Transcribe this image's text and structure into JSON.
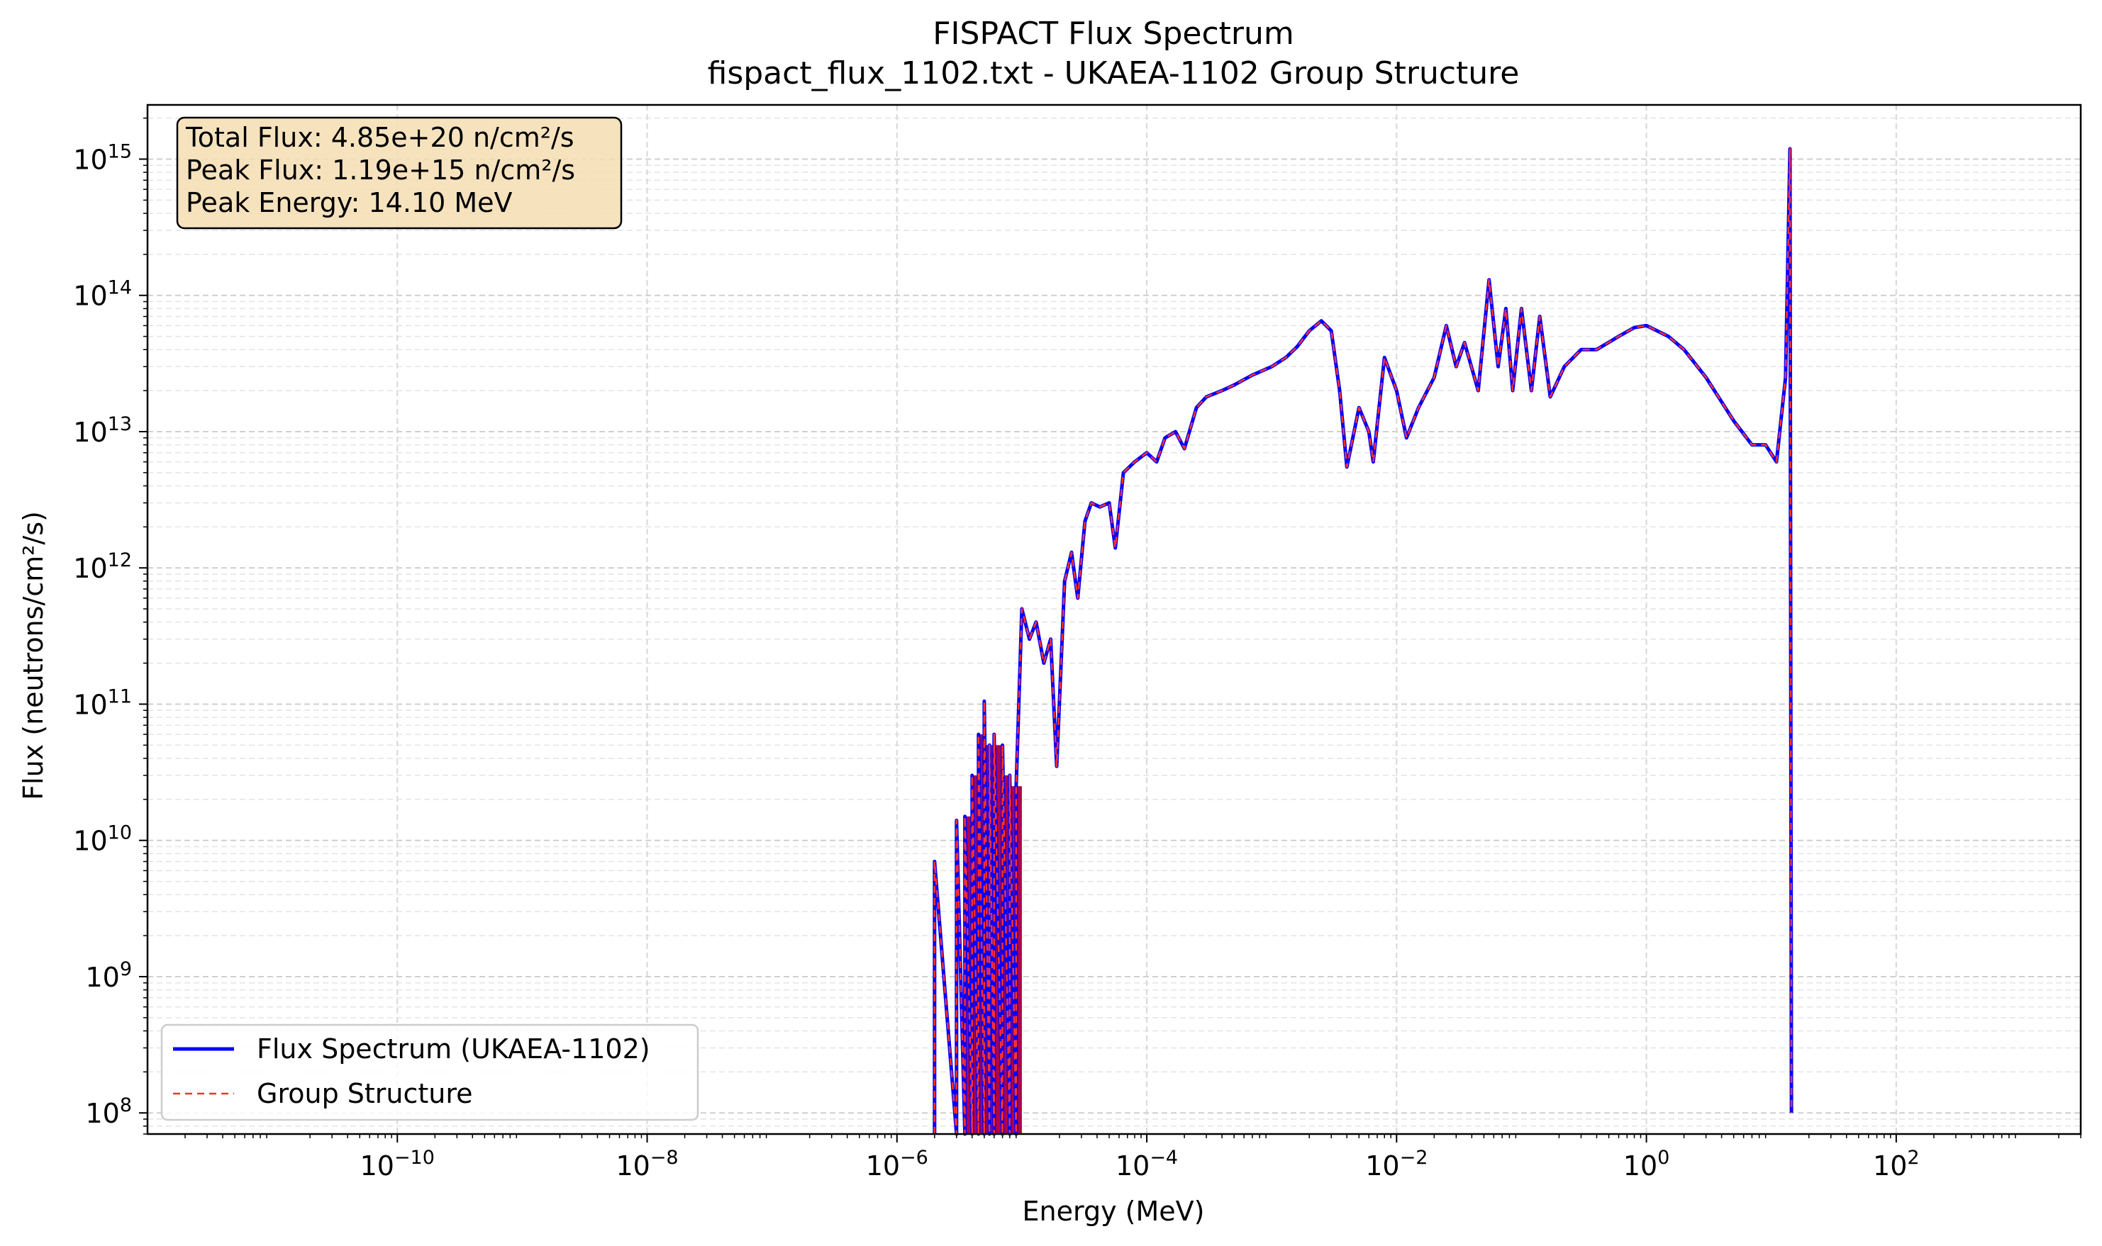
{
  "chart_data": {
    "type": "line",
    "title": "FISPACT Flux Spectrum",
    "subtitle": "fispact_flux_1102.txt - UKAEA-1102 Group Structure",
    "xlabel": "Energy (MeV)",
    "ylabel": "Flux (neutrons/cm²/s)",
    "xscale": "log",
    "yscale": "log",
    "xlim": [
      1e-12,
      3000
    ],
    "ylim": [
      70000000.0,
      2500000000000000.0
    ],
    "grid": true,
    "legend_position": "lower-left",
    "x_ticks": [
      {
        "value": 1e-10,
        "base": "10",
        "exp": "−10"
      },
      {
        "value": 1e-08,
        "base": "10",
        "exp": "−8"
      },
      {
        "value": 1e-06,
        "base": "10",
        "exp": "−6"
      },
      {
        "value": 0.0001,
        "base": "10",
        "exp": "−4"
      },
      {
        "value": 0.01,
        "base": "10",
        "exp": "−2"
      },
      {
        "value": 1,
        "base": "10",
        "exp": "0"
      },
      {
        "value": 100,
        "base": "10",
        "exp": "2"
      }
    ],
    "y_ticks": [
      {
        "value": 100000000.0,
        "base": "10",
        "exp": "8"
      },
      {
        "value": 1000000000.0,
        "base": "10",
        "exp": "9"
      },
      {
        "value": 10000000000.0,
        "base": "10",
        "exp": "10"
      },
      {
        "value": 100000000000.0,
        "base": "10",
        "exp": "11"
      },
      {
        "value": 1000000000000.0,
        "base": "10",
        "exp": "12"
      },
      {
        "value": 10000000000000.0,
        "base": "10",
        "exp": "13"
      },
      {
        "value": 100000000000000.0,
        "base": "10",
        "exp": "14"
      },
      {
        "value": 1000000000000000.0,
        "base": "10",
        "exp": "15"
      }
    ],
    "annotation": {
      "lines": [
        "Total Flux: 4.85e+20 n/cm²/s",
        "Peak Flux: 1.19e+15 n/cm²/s",
        "Peak Energy: 14.10 MeV"
      ],
      "position": "top-left"
    },
    "series": [
      {
        "name": "Flux Spectrum (UKAEA-1102)",
        "color": "#0000ff",
        "style": "solid"
      },
      {
        "name": "Group Structure",
        "color": "#ff0000",
        "style": "dashed"
      }
    ],
    "points": [
      [
        2e-06,
        7000000000.0
      ],
      [
        3e-06,
        14000000000.0
      ],
      [
        3.5e-06,
        15000000000.0
      ],
      [
        4e-06,
        30000000000.0
      ],
      [
        4.5e-06,
        60000000000.0
      ],
      [
        5e-06,
        105000000000.0
      ],
      [
        5.5e-06,
        50000000000.0
      ],
      [
        6e-06,
        60000000000.0
      ],
      [
        7e-06,
        50000000000.0
      ],
      [
        8e-06,
        30000000000.0
      ],
      [
        9e-06,
        25000000000.0
      ],
      [
        1e-05,
        500000000000.0
      ],
      [
        1.15e-05,
        300000000000.0
      ],
      [
        1.3e-05,
        400000000000.0
      ],
      [
        1.5e-05,
        200000000000.0
      ],
      [
        1.7e-05,
        300000000000.0
      ],
      [
        1.9e-05,
        35000000000.0
      ],
      [
        2.2e-05,
        800000000000.0
      ],
      [
        2.5e-05,
        1300000000000.0
      ],
      [
        2.8e-05,
        600000000000.0
      ],
      [
        3.2e-05,
        2200000000000.0
      ],
      [
        3.6e-05,
        3000000000000.0
      ],
      [
        4.2e-05,
        2800000000000.0
      ],
      [
        5e-05,
        3000000000000.0
      ],
      [
        5.6e-05,
        1400000000000.0
      ],
      [
        6.5e-05,
        5000000000000.0
      ],
      [
        8e-05,
        6000000000000.0
      ],
      [
        0.0001,
        7000000000000.0
      ],
      [
        0.00012,
        6000000000000.0
      ],
      [
        0.00014,
        9000000000000.0
      ],
      [
        0.00017,
        10000000000000.0
      ],
      [
        0.0002,
        7500000000000.0
      ],
      [
        0.00025,
        15000000000000.0
      ],
      [
        0.0003,
        18000000000000.0
      ],
      [
        0.0004,
        20000000000000.0
      ],
      [
        0.0005,
        22000000000000.0
      ],
      [
        0.0007,
        26000000000000.0
      ],
      [
        0.001,
        30000000000000.0
      ],
      [
        0.0013,
        35000000000000.0
      ],
      [
        0.0016,
        42000000000000.0
      ],
      [
        0.002,
        55000000000000.0
      ],
      [
        0.0025,
        65000000000000.0
      ],
      [
        0.003,
        55000000000000.0
      ],
      [
        0.0035,
        20000000000000.0
      ],
      [
        0.004,
        5500000000000.0
      ],
      [
        0.005,
        15000000000000.0
      ],
      [
        0.006,
        10000000000000.0
      ],
      [
        0.0065,
        6000000000000.0
      ],
      [
        0.008,
        35000000000000.0
      ],
      [
        0.01,
        20000000000000.0
      ],
      [
        0.012,
        9000000000000.0
      ],
      [
        0.015,
        15000000000000.0
      ],
      [
        0.02,
        25000000000000.0
      ],
      [
        0.025,
        60000000000000.0
      ],
      [
        0.03,
        30000000000000.0
      ],
      [
        0.035,
        45000000000000.0
      ],
      [
        0.045,
        20000000000000.0
      ],
      [
        0.055,
        130000000000000.0
      ],
      [
        0.065,
        30000000000000.0
      ],
      [
        0.075,
        80000000000000.0
      ],
      [
        0.085,
        20000000000000.0
      ],
      [
        0.1,
        80000000000000.0
      ],
      [
        0.12,
        20000000000000.0
      ],
      [
        0.14,
        70000000000000.0
      ],
      [
        0.17,
        18000000000000.0
      ],
      [
        0.22,
        30000000000000.0
      ],
      [
        0.3,
        40000000000000.0
      ],
      [
        0.4,
        40000000000000.0
      ],
      [
        0.6,
        50000000000000.0
      ],
      [
        0.8,
        58000000000000.0
      ],
      [
        1,
        60000000000000.0
      ],
      [
        1.5,
        50000000000000.0
      ],
      [
        2,
        40000000000000.0
      ],
      [
        3,
        25000000000000.0
      ],
      [
        5,
        12000000000000.0
      ],
      [
        7,
        8000000000000.0
      ],
      [
        9,
        8000000000000.0
      ],
      [
        11,
        6000000000000.0
      ],
      [
        13,
        25000000000000.0
      ],
      [
        14.1,
        1190000000000000.0
      ],
      [
        14.5,
        100000000.0
      ]
    ]
  }
}
